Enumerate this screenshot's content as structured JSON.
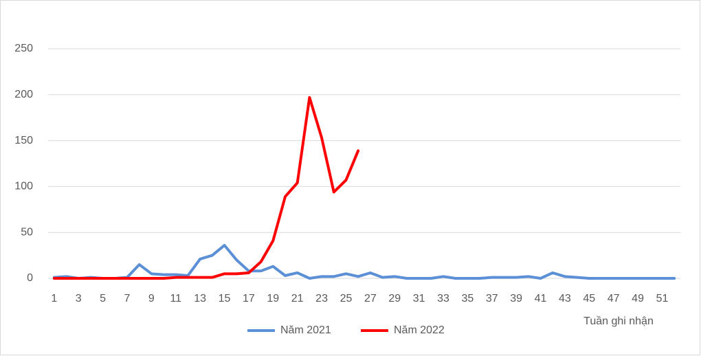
{
  "chart_data": {
    "type": "line",
    "x_label": "Tuần ghi nhận",
    "x": [
      1,
      2,
      3,
      4,
      5,
      6,
      7,
      8,
      9,
      10,
      11,
      12,
      13,
      14,
      15,
      16,
      17,
      18,
      19,
      20,
      21,
      22,
      23,
      24,
      25,
      26,
      27,
      28,
      29,
      30,
      31,
      32,
      33,
      34,
      35,
      36,
      37,
      38,
      39,
      40,
      41,
      42,
      43,
      44,
      45,
      46,
      47,
      48,
      49,
      50,
      51,
      52
    ],
    "xlim": [
      0.5,
      52.5
    ],
    "xticks": [
      1,
      3,
      5,
      7,
      9,
      11,
      13,
      15,
      17,
      19,
      21,
      23,
      25,
      27,
      29,
      31,
      33,
      35,
      37,
      39,
      41,
      43,
      45,
      47,
      49,
      51
    ],
    "ylim": [
      0,
      250
    ],
    "yticks": [
      0,
      50,
      100,
      150,
      200,
      250
    ],
    "grid": true,
    "legend": "bottom",
    "series": [
      {
        "name": "Năm 2021",
        "color": "#5b8fd6",
        "values": [
          1,
          2,
          0,
          1,
          0,
          0,
          1,
          15,
          5,
          4,
          4,
          3,
          21,
          25,
          36,
          20,
          8,
          8,
          13,
          3,
          6,
          0,
          2,
          2,
          5,
          2,
          6,
          1,
          2,
          0,
          0,
          0,
          2,
          0,
          0,
          0,
          1,
          1,
          1,
          2,
          0,
          6,
          2,
          1,
          0,
          0,
          0,
          0,
          0,
          0,
          0,
          0
        ]
      },
      {
        "name": "Năm 2022",
        "color": "#ff0000",
        "values": [
          0,
          0,
          0,
          0,
          0,
          0,
          0,
          0,
          0,
          0,
          1,
          1,
          1,
          1,
          5,
          5,
          6,
          18,
          41,
          89,
          104,
          197,
          153,
          94,
          107,
          139,
          null,
          null,
          null,
          null,
          null,
          null,
          null,
          null,
          null,
          null,
          null,
          null,
          null,
          null,
          null,
          null,
          null,
          null,
          null,
          null,
          null,
          null,
          null,
          null,
          null,
          null
        ]
      }
    ]
  }
}
